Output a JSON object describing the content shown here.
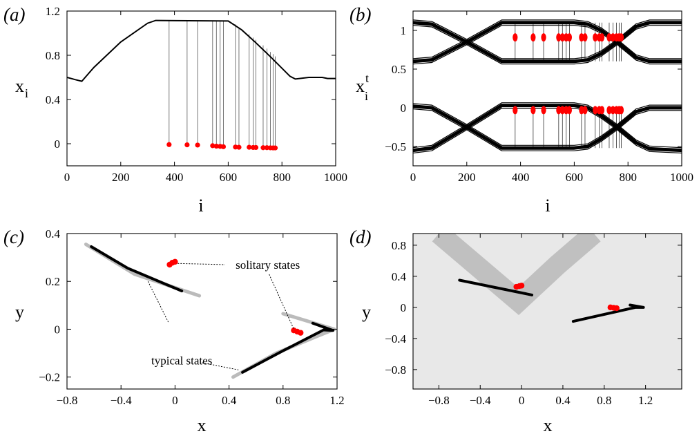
{
  "chart_data": [
    {
      "panel": "(a)",
      "type": "line",
      "xlabel": "i",
      "ylabel": "x",
      "ylabel_sub": "i",
      "xlim": [
        0,
        1000
      ],
      "ylim": [
        -0.2,
        1.2
      ],
      "xticks": [
        0,
        200,
        400,
        600,
        800,
        1000
      ],
      "xtick_labels": [
        "0",
        "200",
        "400",
        "600",
        "800",
        "1000"
      ],
      "yticks": [
        0,
        0.4,
        0.8,
        1.2
      ],
      "ytick_labels": [
        "0",
        "0.4",
        "0.8",
        "1.2"
      ],
      "typical_profile": {
        "x": [
          0,
          30,
          55,
          100,
          200,
          300,
          330,
          600,
          650,
          700,
          760,
          830,
          850,
          900,
          950,
          970,
          1000
        ],
        "y": [
          0.6,
          0.58,
          0.565,
          0.69,
          0.92,
          1.09,
          1.115,
          1.11,
          1.03,
          0.92,
          0.78,
          0.61,
          0.585,
          0.6,
          0.6,
          0.59,
          0.59
        ]
      },
      "solitary_nodes": {
        "i": [
          380,
          447,
          486,
          542,
          556,
          570,
          582,
          627,
          640,
          678,
          693,
          703,
          730,
          744,
          757,
          767,
          775
        ],
        "x": [
          -0.008,
          -0.01,
          -0.012,
          -0.018,
          -0.022,
          -0.024,
          -0.027,
          -0.03,
          -0.032,
          -0.032,
          -0.034,
          -0.034,
          -0.036,
          -0.036,
          -0.037,
          -0.038,
          -0.038
        ],
        "from": [
          1.11,
          1.11,
          1.11,
          1.11,
          1.11,
          1.11,
          1.11,
          1.08,
          1.05,
          0.99,
          0.96,
          0.94,
          0.89,
          0.86,
          0.83,
          0.81,
          0.79
        ]
      }
    },
    {
      "panel": "(b)",
      "type": "line",
      "xlabel": "i",
      "ylabel": "x",
      "ylabel_sub": "i",
      "ylabel_sup": "t",
      "xlim": [
        0,
        1000
      ],
      "ylim": [
        -0.75,
        1.25
      ],
      "xticks": [
        0,
        200,
        400,
        600,
        800,
        1000
      ],
      "xtick_labels": [
        "0",
        "200",
        "400",
        "600",
        "800",
        "1000"
      ],
      "yticks": [
        -0.5,
        0,
        0.5,
        1
      ],
      "ytick_labels": [
        "-0.5",
        "0",
        "0.5",
        "1"
      ],
      "typical_branches": [
        {
          "x": [
            0,
            70,
            200,
            330,
            600,
            650,
            700,
            760,
            830,
            880,
            1000
          ],
          "y": [
            1.1,
            1.08,
            0.85,
            0.6,
            0.6,
            0.62,
            0.7,
            0.85,
            1.05,
            1.1,
            1.1
          ]
        },
        {
          "x": [
            0,
            70,
            200,
            330,
            600,
            650,
            700,
            760,
            830,
            880,
            1000
          ],
          "y": [
            0.6,
            0.62,
            0.85,
            1.1,
            1.1,
            1.08,
            1.0,
            0.85,
            0.65,
            0.6,
            0.6
          ]
        },
        {
          "x": [
            0,
            70,
            200,
            330,
            600,
            650,
            700,
            760,
            830,
            880,
            1000
          ],
          "y": [
            0.02,
            0.0,
            -0.25,
            -0.52,
            -0.52,
            -0.5,
            -0.4,
            -0.25,
            -0.05,
            0.0,
            0.0
          ]
        },
        {
          "x": [
            0,
            70,
            200,
            330,
            600,
            650,
            700,
            760,
            830,
            880,
            1000
          ],
          "y": [
            -0.55,
            -0.52,
            -0.25,
            0.03,
            0.03,
            0.0,
            -0.1,
            -0.25,
            -0.45,
            -0.53,
            -0.55
          ]
        }
      ],
      "solitary_nodes": {
        "i": [
          380,
          447,
          486,
          542,
          556,
          570,
          582,
          627,
          640,
          678,
          693,
          703,
          730,
          744,
          757,
          767,
          775
        ],
        "upper": [
          0.91,
          0.91,
          0.91,
          0.91,
          0.91,
          0.91,
          0.91,
          0.91,
          0.91,
          0.91,
          0.91,
          0.91,
          0.91,
          0.91,
          0.91,
          0.91,
          0.91
        ],
        "lower": [
          -0.03,
          -0.03,
          -0.03,
          -0.03,
          -0.03,
          -0.03,
          -0.03,
          -0.03,
          -0.03,
          -0.03,
          -0.03,
          -0.03,
          -0.03,
          -0.03,
          -0.03,
          -0.03,
          -0.03
        ]
      }
    },
    {
      "panel": "(c)",
      "type": "scatter",
      "xlabel": "x",
      "ylabel": "y",
      "xlim": [
        -0.8,
        1.2
      ],
      "ylim": [
        -0.25,
        0.4
      ],
      "xticks": [
        -0.8,
        -0.4,
        0,
        0.4,
        0.8,
        1.2
      ],
      "xtick_labels": [
        "-0.8",
        "-0.4",
        "0",
        "0.4",
        "0.8",
        "1.2"
      ],
      "yticks": [
        -0.2,
        0,
        0.2,
        0.4
      ],
      "ytick_labels": [
        "-0.2",
        "0",
        "0.2",
        "0.4"
      ],
      "typical_attractor": [
        {
          "x": [
            -0.62,
            -0.35,
            0.05
          ],
          "y": [
            0.345,
            0.255,
            0.16
          ]
        },
        {
          "x": [
            0.5,
            0.8,
            1.1,
            1.17,
            1.02
          ],
          "y": [
            -0.18,
            -0.09,
            -0.003,
            -0.005,
            0.025
          ]
        }
      ],
      "typical_basin_edge": [
        {
          "x": [
            -0.66,
            -0.3,
            0.18
          ],
          "y": [
            0.355,
            0.23,
            0.14
          ]
        },
        {
          "x": [
            0.43,
            0.75,
            1.05,
            1.18,
            0.8
          ],
          "y": [
            -0.2,
            -0.1,
            -0.03,
            0.0,
            0.065
          ]
        }
      ],
      "solitary_clusters": [
        {
          "x": [
            -0.04,
            -0.02,
            0.0
          ],
          "y": [
            0.27,
            0.278,
            0.282
          ]
        },
        {
          "x": [
            0.88,
            0.905,
            0.93
          ],
          "y": [
            -0.005,
            -0.01,
            -0.015
          ]
        }
      ],
      "annotations": [
        {
          "text": "solitary states",
          "x": 0.38,
          "y": 0.27
        },
        {
          "text": "typical states",
          "x": 0.05,
          "y": -0.13
        }
      ]
    },
    {
      "panel": "(d)",
      "type": "scatter",
      "xlabel": "x",
      "ylabel": "y",
      "xlim": [
        -1.05,
        1.55
      ],
      "ylim": [
        -1.05,
        0.95
      ],
      "xticks": [
        -0.8,
        -0.4,
        0,
        0.4,
        0.8,
        1.2
      ],
      "xtick_labels": [
        "-0.8",
        "-0.4",
        "0",
        "0.4",
        "0.8",
        "1.2"
      ],
      "yticks": [
        -0.8,
        -0.4,
        0,
        0.4,
        0.8
      ],
      "ytick_labels": [
        "-0.8",
        "-0.4",
        "0",
        "0.4",
        "0.8"
      ],
      "typical_attractor": [
        {
          "x": [
            -0.6,
            0.1
          ],
          "y": [
            0.35,
            0.16
          ]
        },
        {
          "x": [
            0.5,
            1.1,
            1.18,
            1.05
          ],
          "y": [
            -0.18,
            0.0,
            0.0,
            0.03
          ]
        }
      ],
      "solitary_clusters": [
        {
          "x": [
            -0.05,
            -0.02,
            0.0
          ],
          "y": [
            0.265,
            0.275,
            0.28
          ]
        },
        {
          "x": [
            0.86,
            0.89,
            0.92
          ],
          "y": [
            0.0,
            -0.005,
            -0.01
          ]
        }
      ],
      "basin_band": {
        "x": [
          -0.8,
          -0.03,
          0.35,
          0.7
        ],
        "y": [
          0.95,
          0.08,
          0.55,
          0.95
        ]
      },
      "colors": {
        "basin_background": "#e8e8e8",
        "basin_band": "#c0c0c0"
      }
    }
  ],
  "colors": {
    "red": "#ff0000",
    "black": "#000000",
    "gray": "#bbbbbb"
  }
}
